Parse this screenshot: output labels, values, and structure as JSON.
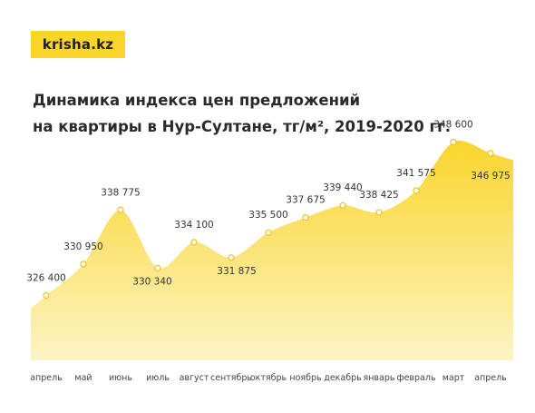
{
  "brand": {
    "logo_text": "krisha.kz"
  },
  "title": {
    "line1": "Динамика индекса цен предложений",
    "line2": "на квартиры в Нур-Султане, тг/м², 2019-2020 гг."
  },
  "colors": {
    "accent": "#f9d52b",
    "area_top": "#f9d52b",
    "area_bottom": "#fdf4c6"
  },
  "chart_data": {
    "type": "area",
    "title": "Динамика индекса цен предложений на квартиры в Нур-Султане, тг/м², 2019-2020 гг.",
    "xlabel": "",
    "ylabel": "",
    "grid": false,
    "categories": [
      "апрель",
      "май",
      "июнь",
      "июль",
      "август",
      "сентябрь",
      "октябрь",
      "ноябрь",
      "декабрь",
      "январь",
      "февраль",
      "март",
      "апрель"
    ],
    "values": [
      326400,
      330950,
      338775,
      330340,
      334100,
      331875,
      335500,
      337675,
      339440,
      338425,
      341575,
      348600,
      346975
    ],
    "value_labels": [
      "326 400",
      "330 950",
      "338 775",
      "330 340",
      "334 100",
      "331 875",
      "335 500",
      "337 675",
      "339 440",
      "338 425",
      "341 575",
      "348 600",
      "346 975"
    ],
    "ylim": [
      322000,
      350500
    ]
  }
}
